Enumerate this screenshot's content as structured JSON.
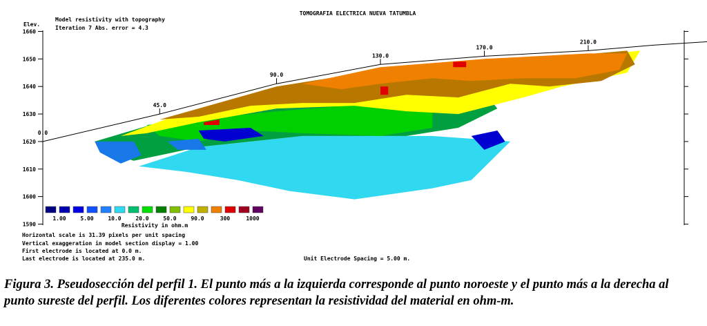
{
  "chart_data": {
    "type": "heatmap",
    "title": "TOMOGRAFIA ELECTRICA NUEVA TATUMBLA",
    "subtitle_lines": [
      "Model resistivity with topography",
      "Iteration 7 Abs. error = 4.3"
    ],
    "ylabel": "Elev.",
    "xlabel": "",
    "ylim": [
      1590,
      1662
    ],
    "y_ticks": [
      1660,
      1650,
      1640,
      1630,
      1620,
      1610,
      1600,
      1590
    ],
    "xlim": [
      0,
      235
    ],
    "x_ticks": [
      0,
      45,
      90,
      130,
      170,
      210
    ],
    "x_tick_labels": [
      "0.0",
      "45.0",
      "90.0",
      "130.0",
      "170.0",
      "210.0"
    ],
    "topography": [
      [
        0,
        1620
      ],
      [
        45,
        1630
      ],
      [
        90,
        1641
      ],
      [
        130,
        1648
      ],
      [
        170,
        1651
      ],
      [
        210,
        1653
      ],
      [
        235,
        1655
      ]
    ],
    "zones": [
      {
        "color": "#30d8f0",
        "points": [
          [
            37,
            1611
          ],
          [
            60,
            1618
          ],
          [
            100,
            1622
          ],
          [
            150,
            1622
          ],
          [
            180,
            1620
          ],
          [
            165,
            1606
          ],
          [
            150,
            1603
          ],
          [
            120,
            1599
          ],
          [
            95,
            1602
          ],
          [
            75,
            1606
          ],
          [
            55,
            1609
          ]
        ]
      },
      {
        "color": "#00a040",
        "points": [
          [
            20,
            1620
          ],
          [
            45,
            1627
          ],
          [
            90,
            1633
          ],
          [
            130,
            1636
          ],
          [
            170,
            1638
          ],
          [
            175,
            1632
          ],
          [
            160,
            1625
          ],
          [
            140,
            1622
          ],
          [
            100,
            1622
          ],
          [
            60,
            1618
          ],
          [
            35,
            1613
          ],
          [
            25,
            1616
          ]
        ]
      },
      {
        "color": "#00d000",
        "points": [
          [
            40,
            1626
          ],
          [
            90,
            1631
          ],
          [
            130,
            1634
          ],
          [
            150,
            1633
          ],
          [
            150,
            1625
          ],
          [
            130,
            1622
          ],
          [
            100,
            1623
          ],
          [
            80,
            1624
          ],
          [
            60,
            1620
          ],
          [
            45,
            1622
          ]
        ]
      },
      {
        "color": "#ffff00",
        "points": [
          [
            30,
            1622
          ],
          [
            50,
            1629
          ],
          [
            90,
            1639
          ],
          [
            130,
            1644
          ],
          [
            170,
            1648
          ],
          [
            210,
            1651
          ],
          [
            230,
            1653
          ],
          [
            225,
            1645
          ],
          [
            200,
            1640
          ],
          [
            185,
            1636
          ],
          [
            160,
            1630
          ],
          [
            140,
            1631
          ],
          [
            120,
            1633
          ],
          [
            90,
            1632
          ],
          [
            60,
            1627
          ],
          [
            40,
            1623
          ]
        ]
      },
      {
        "color": "#b87800",
        "points": [
          [
            45,
            1628
          ],
          [
            90,
            1640
          ],
          [
            130,
            1646
          ],
          [
            170,
            1649
          ],
          [
            200,
            1651
          ],
          [
            225,
            1653
          ],
          [
            228,
            1648
          ],
          [
            215,
            1642
          ],
          [
            195,
            1640
          ],
          [
            180,
            1641
          ],
          [
            160,
            1636
          ],
          [
            140,
            1637
          ],
          [
            120,
            1634
          ],
          [
            100,
            1634
          ],
          [
            80,
            1633
          ],
          [
            60,
            1629
          ]
        ]
      },
      {
        "color": "#f08000",
        "points": [
          [
            100,
            1641
          ],
          [
            130,
            1647
          ],
          [
            170,
            1650
          ],
          [
            210,
            1652
          ],
          [
            225,
            1652
          ],
          [
            222,
            1646
          ],
          [
            205,
            1643
          ],
          [
            185,
            1643
          ],
          [
            165,
            1642
          ],
          [
            150,
            1643
          ],
          [
            130,
            1641
          ],
          [
            115,
            1639
          ]
        ]
      },
      {
        "color": "#1878e8",
        "points": [
          [
            20,
            1620
          ],
          [
            35,
            1620
          ],
          [
            38,
            1615
          ],
          [
            30,
            1612
          ],
          [
            22,
            1616
          ]
        ]
      },
      {
        "color": "#0000d0",
        "points": [
          [
            60,
            1624
          ],
          [
            80,
            1625
          ],
          [
            85,
            1622
          ],
          [
            70,
            1620
          ],
          [
            62,
            1621
          ]
        ]
      },
      {
        "color": "#0000d0",
        "points": [
          [
            165,
            1622
          ],
          [
            175,
            1624
          ],
          [
            178,
            1620
          ],
          [
            170,
            1617
          ]
        ]
      },
      {
        "color": "#1878e8",
        "points": [
          [
            48,
            1620
          ],
          [
            60,
            1621
          ],
          [
            63,
            1617
          ],
          [
            52,
            1617
          ]
        ]
      },
      {
        "color": "#e00000",
        "points": [
          [
            130,
            1640
          ],
          [
            133,
            1640
          ],
          [
            133,
            1637
          ],
          [
            130,
            1637
          ]
        ]
      },
      {
        "color": "#e00000",
        "points": [
          [
            158,
            1649
          ],
          [
            163,
            1649
          ],
          [
            163,
            1647
          ],
          [
            158,
            1647
          ]
        ]
      },
      {
        "color": "#e00000",
        "points": [
          [
            62,
            1627
          ],
          [
            68,
            1628
          ],
          [
            68,
            1626
          ],
          [
            62,
            1626
          ]
        ]
      }
    ],
    "legend": {
      "colors": [
        "#000080",
        "#0000b0",
        "#0000e0",
        "#1050ff",
        "#2080ff",
        "#30d8f0",
        "#00c070",
        "#00e000",
        "#008000",
        "#80c000",
        "#ffff00",
        "#c0b000",
        "#f08000",
        "#e00000",
        "#a00020",
        "#600060"
      ],
      "values": [
        "1.00",
        "5.00",
        "10.0",
        "20.0",
        "50.0",
        "90.0",
        "300",
        "1000"
      ],
      "label": "Resistivity in ohm.m"
    },
    "notes": [
      "Horizontal scale is 31.39 pixels per unit spacing",
      "Vertical exaggeration in model section display = 1.00",
      "First electrode is located at 0.0  m.",
      "Last electrode is located at 235.0 m."
    ],
    "spacing_note": "Unit Electrode Spacing = 5.00 m."
  },
  "caption": "Figura 3. Pseudosección del perfil 1. El punto más a la izquierda corresponde al punto noroeste y el punto más a la derecha al punto sureste del perfil.  Los diferentes colores representan la resistividad del material en ohm-m."
}
